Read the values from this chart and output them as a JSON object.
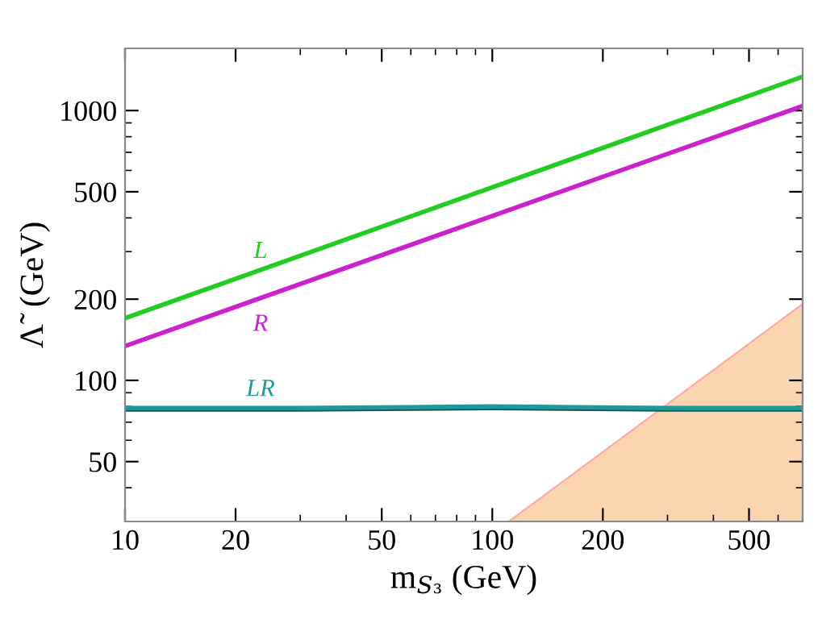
{
  "chart_data": {
    "type": "line",
    "xlabel": "m$_{S₃}$ (GeV)",
    "ylabel": "Λ̃  (GeV)",
    "log": "xy",
    "grid": false,
    "legend": false,
    "line_style": "solid",
    "marker": "none",
    "xlim": [
      10,
      700
    ],
    "ylim": [
      30,
      1700
    ],
    "xticks": [
      10,
      20,
      50,
      100,
      200,
      500
    ],
    "yticks": [
      50,
      100,
      200,
      500,
      1000
    ],
    "series": [
      {
        "name": "L",
        "color": "#22cc22",
        "x": [
          10,
          700
        ],
        "values": [
          170,
          1335
        ]
      },
      {
        "name": "R",
        "color": "#cc22cc",
        "x": [
          10,
          700
        ],
        "values": [
          134,
          1040
        ]
      },
      {
        "color": "#1a5050",
        "x": [
          10,
          30,
          100,
          300,
          700
        ],
        "values": [
          78,
          78,
          79,
          78,
          78
        ]
      },
      {
        "name": "LR",
        "color": "#1a9a9a",
        "x": [
          10,
          30,
          100,
          300,
          700
        ],
        "values": [
          79,
          79,
          80,
          79,
          79
        ]
      },
      {
        "type": "area",
        "color": "#fbd5b0",
        "x": [
          111,
          700
        ],
        "values": [
          30,
          192
        ]
      }
    ]
  }
}
